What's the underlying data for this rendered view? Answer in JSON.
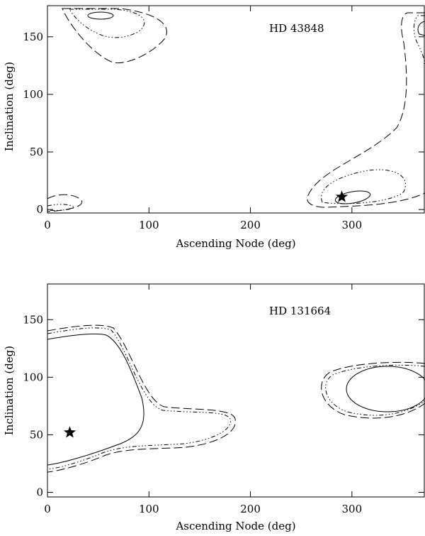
{
  "chart_data": [
    {
      "type": "scatter",
      "title": "HD 43848",
      "xlabel": "Ascending Node (deg)",
      "ylabel": "Inclination (deg)",
      "x": [
        290
      ],
      "values": [
        11
      ],
      "marker": "star",
      "color": "#000000",
      "xlim": [
        0,
        372
      ],
      "ylim": [
        -3,
        177
      ],
      "xticks": [
        0,
        100,
        200,
        300
      ],
      "yticks": [
        0,
        50,
        100,
        150
      ]
    },
    {
      "type": "scatter",
      "title": "HD 131664",
      "xlabel": "Ascending Node (deg)",
      "ylabel": "Inclination (deg)",
      "x": [
        22
      ],
      "values": [
        52
      ],
      "marker": "star",
      "color": "#000000",
      "xlim": [
        0,
        372
      ],
      "ylim": [
        -4,
        181
      ],
      "xticks": [
        0,
        100,
        200,
        300
      ],
      "yticks": [
        0,
        50,
        100,
        150
      ]
    }
  ]
}
